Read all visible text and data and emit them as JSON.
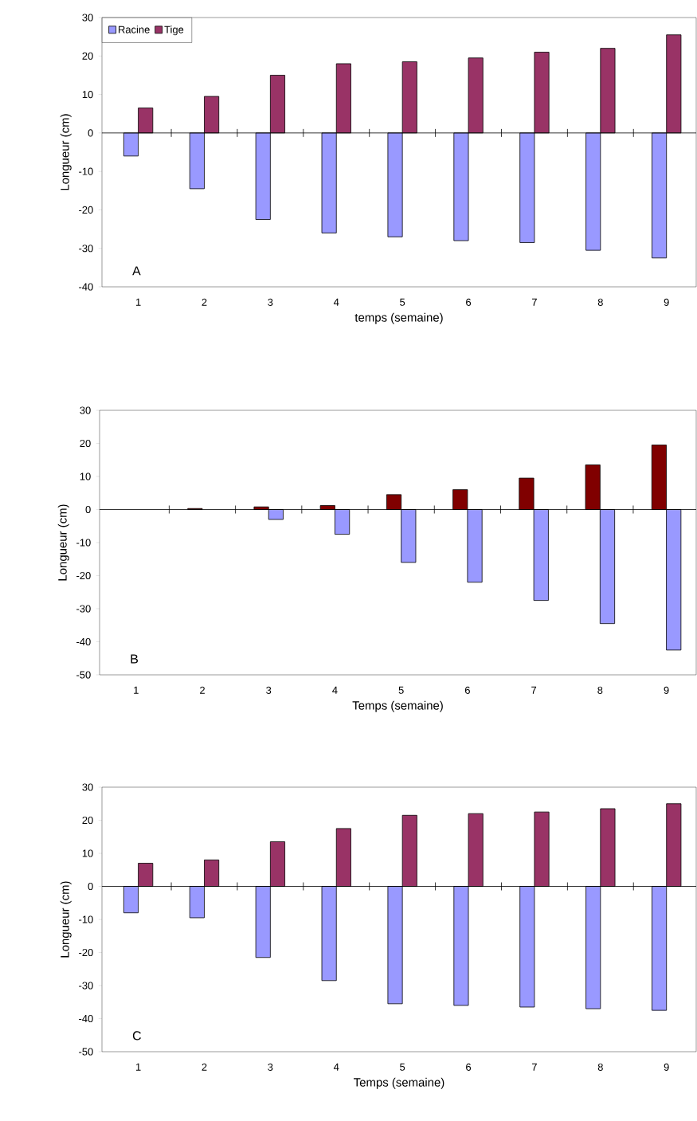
{
  "chart_data": [
    {
      "type": "bar",
      "categories": [
        "1",
        "2",
        "3",
        "4",
        "5",
        "6",
        "7",
        "8",
        "9"
      ],
      "series": [
        {
          "name": "Racine",
          "color": "#9999ff",
          "values": [
            -6,
            -14.5,
            -22.5,
            -26,
            -27,
            -28,
            -28.5,
            -30.5,
            -32.5
          ]
        },
        {
          "name": "Tige",
          "color": "#993366",
          "values": [
            6.5,
            9.5,
            15,
            18,
            18.5,
            19.5,
            21,
            22,
            25.5
          ]
        }
      ],
      "ylim": [
        -40,
        30
      ],
      "yticks": [
        -40,
        -30,
        -20,
        -10,
        0,
        10,
        20,
        30
      ],
      "ylabel": "Longueur (cm)",
      "xlabel": "temps (semaine)",
      "annotations": [
        "A"
      ],
      "legend": "top left"
    },
    {
      "type": "bar",
      "categories": [
        "1",
        "2",
        "3",
        "4",
        "5",
        "6",
        "7",
        "8",
        "9"
      ],
      "series": [
        {
          "color": "#800000",
          "values": [
            null,
            0.3,
            0.8,
            1.2,
            4.5,
            6,
            9.5,
            13.5,
            19.5
          ]
        },
        {
          "color": "#9999ff",
          "values": [
            null,
            null,
            -3,
            -7.5,
            -16,
            -22,
            -27.5,
            -34.5,
            -42.5
          ]
        }
      ],
      "ylim": [
        -50,
        30
      ],
      "yticks": [
        -50,
        -40,
        -30,
        -20,
        -10,
        0,
        10,
        20,
        30
      ],
      "ylabel": "Longueur (cm)",
      "xlabel": "Temps (semaine)",
      "annotations": [
        "B"
      ]
    },
    {
      "type": "bar",
      "categories": [
        "1",
        "2",
        "3",
        "4",
        "5",
        "6",
        "7",
        "8",
        "9"
      ],
      "series": [
        {
          "color": "#9999ff",
          "values": [
            -8,
            -9.5,
            -21.5,
            -28.5,
            -35.5,
            -36,
            -36.5,
            -37,
            -37.5
          ]
        },
        {
          "color": "#993366",
          "values": [
            7,
            8,
            13.5,
            17.5,
            21.5,
            22,
            22.5,
            23.5,
            25
          ]
        }
      ],
      "ylim": [
        -50,
        30
      ],
      "yticks": [
        -50,
        -40,
        -30,
        -20,
        -10,
        0,
        10,
        20,
        30
      ],
      "ylabel": "Longueur (cm)",
      "xlabel": "Temps (semaine)",
      "annotations": [
        "C"
      ]
    }
  ]
}
